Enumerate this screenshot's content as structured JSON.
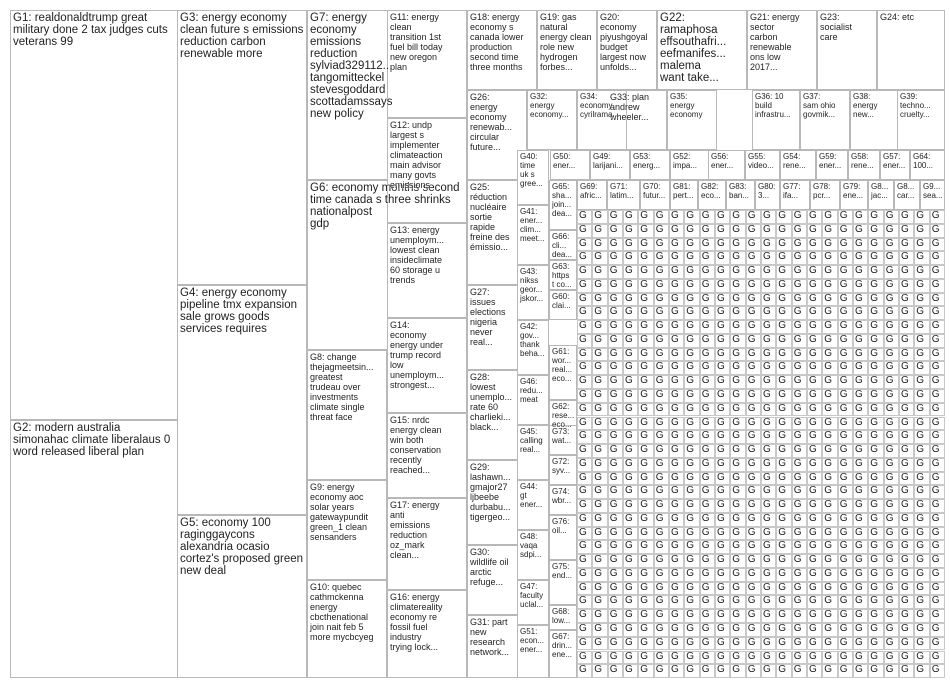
{
  "groups": [
    {
      "id": "G1",
      "text": "G1: realdonaldtrump great\nmilitary done 2 tax judges cuts\nveterans 99",
      "color": "#1a2a6c"
    },
    {
      "id": "G2",
      "text": "G2: modern australia\nsimonahac climate liberalaus 0\nword released liberal plan",
      "color": "#1f6fb5"
    },
    {
      "id": "G3",
      "text": "G3: energy economy\nclean future s emissions\nreduction carbon\nrenewable more",
      "color": "#2e7d32"
    },
    {
      "id": "G4",
      "text": "G4: energy economy\npipeline tmx expansion\nsale grows goods\nservices requires",
      "color": "#2fa84f"
    },
    {
      "id": "G5",
      "text": "G5: economy 100\nraginggaycons\nalexandria ocasio\ncortez's proposed green\nnew deal",
      "color": "#b71c1c"
    },
    {
      "id": "G6",
      "text": "G6: economy months second\ntime canada s three shrinks\nnationalpost\ngdp",
      "color": "#e08a1e"
    },
    {
      "id": "G7",
      "text": "G7: energy\neconomy\nemissions\nreduction\nsylviad329112...\ntangomitteckel\nstevesgoddard\nscottadamssays\nnew policy",
      "color": "#7b5ea7"
    },
    {
      "id": "G8",
      "text": "G8: change\nthejagmeetsin...\ngreatest\ntrudeau over\ninvestments\nclimate single\nthreat face",
      "color": "#8d6e63"
    },
    {
      "id": "G9",
      "text": "G9: energy\neconomy aoc\nsolar years\ngatewaypundit\ngreen_1 clean\nsensanders",
      "color": "#5c6bc0"
    },
    {
      "id": "G10",
      "text": "G10: quebec\ncathmckenna\nenergy\ncbcthenational\njoin nait feb 5\nmore mycbcyeg",
      "color": "#607d8b"
    },
    {
      "id": "G11",
      "text": "G11: energy\nclean\ntransition 1st\nfuel bill today\nnew oregon\nplan",
      "color": "#455a64"
    },
    {
      "id": "G12",
      "text": "G12: undp\nlargest s\nimplementer\nclimateaction\nmain advisor\nmany govts\nemissions",
      "color": "#6d4c41"
    },
    {
      "id": "G13",
      "text": "G13: energy\nunemploym...\nlowest clean\ninsideclimate\n60 storage u\ntrends",
      "color": "#00897b"
    },
    {
      "id": "G14",
      "text": "G14:\neconomy\nenergy under\ntrump record\nlow\nunemploym...\nstrongest...",
      "color": "#c2185b"
    },
    {
      "id": "G15",
      "text": "G15: nrdc\nenergy clean\nwin both\nconservation\nrecently\nreached...",
      "color": "#558b2f"
    },
    {
      "id": "G16",
      "text": "G16: energy\nclimatereality\neconomy re\nfossil fuel\nindustry\ntrying lock...",
      "color": "#00838f"
    },
    {
      "id": "G17",
      "text": "G17: energy\nanti\nemissions\nreduction\noz_mark\nclean...",
      "color": "#ad1457"
    },
    {
      "id": "G18",
      "text": "G18: energy\neconomy s\ncanada lower\nproduction\nsecond time\nthree months",
      "color": "#6a1b9a"
    },
    {
      "id": "G19",
      "text": "G19: gas\nnatural\nenergy clean\nrole new\nhydrogen\nforbes...",
      "color": "#7cb342"
    },
    {
      "id": "G20",
      "text": "G20:\neconomy\npiyushgoyal\nbudget\nlargest now\nunfolds...",
      "color": "#f9a825"
    },
    {
      "id": "G21",
      "text": "G21: energy\nsector\ncarbon\nrenewable\nons low\n2017...",
      "color": "#e64a19"
    },
    {
      "id": "G22",
      "text": "G22:\nramaphosa\neffsouthafri...\neefmanifes...\nmalema\nwant take...",
      "color": "#5d4037"
    },
    {
      "id": "G23",
      "text": "G23:\nsocialist\ncare",
      "color": "#8e24aa"
    },
    {
      "id": "G24",
      "text": "G24: etc",
      "color": "#26a69a"
    },
    {
      "id": "G25",
      "text": "G25:\nréduction\nnucléaire\nsortie\nrapide\nfreine des\némissio...",
      "color": "#3949ab"
    },
    {
      "id": "G26",
      "text": "G26:\nenergy\neconomy\nrenewab...\ncircular\nfuture...",
      "color": "#0277bd"
    },
    {
      "id": "G27",
      "text": "G27:\nissues\nelections\nnigeria\nnever\nreal...",
      "color": "#43a047"
    },
    {
      "id": "G28",
      "text": "G28:\nlowest\nunemplo...\nrate 60\ncharlieki...\nblack...",
      "color": "#c62828"
    },
    {
      "id": "G29",
      "text": "G29:\nlashawn...\ngmajor27\nljbeebe\ndurbabu...\ntigergeo...",
      "color": "#6d4c41"
    },
    {
      "id": "G30",
      "text": "G30:\nwildlife oil\narctic\nrefuge...",
      "color": "#2e7d32"
    },
    {
      "id": "G31",
      "text": "G31: part\nnew\nresearch\nnetwork...",
      "color": "#546e7a"
    },
    {
      "id": "G32",
      "text": "G32:\nenergy\neconomy...",
      "color": "#1565c0"
    },
    {
      "id": "G33",
      "text": "G33: plan\nandrew\nwheeler...",
      "color": "#8d6e63"
    },
    {
      "id": "G34",
      "text": "G34:\neconomy\ncyrilrama...",
      "color": "#4e342e"
    },
    {
      "id": "G35",
      "text": "G35:\nenergy\neconomy",
      "color": "#00695c"
    },
    {
      "id": "G36",
      "text": "G36: 10\nbuild\ninfrastru...",
      "color": "#283593"
    },
    {
      "id": "G37",
      "text": "G37:\nsam ohio\ngovmik...",
      "color": "#6a1b9a"
    },
    {
      "id": "G38",
      "text": "G38:\nenergy\nnew...",
      "color": "#0097a7"
    },
    {
      "id": "G39",
      "text": "G39:\ntechno...\ncruelty...",
      "color": "#ef6c00"
    },
    {
      "id": "G40",
      "text": "G40:\ntime\nuk s\ngree...",
      "color": "#558b2f"
    },
    {
      "id": "G41",
      "text": "G41:\nener...\nclim...\nmeet...",
      "color": "#1e88e5"
    },
    {
      "id": "G42",
      "text": "G42:\ngov...\nthank\nbeha...",
      "color": "#8e24aa"
    },
    {
      "id": "G43",
      "text": "G43:\nnikss\ngeor...\njskor...",
      "color": "#e53935"
    },
    {
      "id": "G44",
      "text": "G44:\ngt\nener...",
      "color": "#00838f"
    },
    {
      "id": "G45",
      "text": "G45:\ncalling\nreal...",
      "color": "#7cb342"
    },
    {
      "id": "G46",
      "text": "G46:\nredu...\nmeat",
      "color": "#f4511e"
    },
    {
      "id": "G47",
      "text": "G47:\nfaculty\nuclal...",
      "color": "#5e35b1"
    },
    {
      "id": "G48",
      "text": "G48:\nvaqa\nsdpi...",
      "color": "#3949ab"
    },
    {
      "id": "G49",
      "text": "G49:\nlarijani...",
      "color": "#6d4c41"
    },
    {
      "id": "G50",
      "text": "G50:\nener...",
      "color": "#0288d1"
    },
    {
      "id": "G51",
      "text": "G51:\necon...\nener...",
      "color": "#43a047"
    },
    {
      "id": "G52",
      "text": "G52:\nimpa...",
      "color": "#c0ca33"
    },
    {
      "id": "G53",
      "text": "G53:\nenerg...",
      "color": "#e91e63"
    },
    {
      "id": "G54",
      "text": "G54:\nrene...",
      "color": "#009688"
    },
    {
      "id": "G55",
      "text": "G55:\nvideo...",
      "color": "#3f51b5"
    },
    {
      "id": "G56",
      "text": "G56:\nener...",
      "color": "#ff7043"
    },
    {
      "id": "G57",
      "text": "G57:\nener...",
      "color": "#8bc34a"
    },
    {
      "id": "G58",
      "text": "G58:\nrene...",
      "color": "#795548"
    },
    {
      "id": "G59",
      "text": "G59:\nener...",
      "color": "#9c27b0"
    },
    {
      "id": "G60",
      "text": "G60:\nclai...",
      "color": "#00acc1"
    },
    {
      "id": "G61",
      "text": "G61:\nwor...\nreal...\neco...",
      "color": "#fb8c00"
    },
    {
      "id": "G62",
      "text": "G62:\nrese...\neco...",
      "color": "#5c6bc0"
    },
    {
      "id": "G63",
      "text": "G63:\nhttps\nt co...",
      "color": "#26a69a"
    },
    {
      "id": "G64",
      "text": "G64:\n100...",
      "color": "#ab47bc"
    },
    {
      "id": "G65",
      "text": "G65:\nsha...\njoin...\ndea...",
      "color": "#8d6e63"
    },
    {
      "id": "G66",
      "text": "G66:\ncli...\ndea...",
      "color": "#1976d2"
    },
    {
      "id": "G67",
      "text": "G67:\ndrin...\nene...",
      "color": "#d81b60"
    },
    {
      "id": "G68",
      "text": "G68:\nlow...",
      "color": "#689f38"
    },
    {
      "id": "G69",
      "text": "G69:\nafric...",
      "color": "#ff8f00"
    },
    {
      "id": "G70",
      "text": "G70:\nfutur...",
      "color": "#0097a7"
    },
    {
      "id": "G71",
      "text": "G71:\nlatim...",
      "color": "#7b1fa2"
    },
    {
      "id": "G72",
      "text": "G72:\nsyv...",
      "color": "#c62828"
    },
    {
      "id": "G73",
      "text": "G73:\nwat...",
      "color": "#2e7d32"
    },
    {
      "id": "G74",
      "text": "G74:\nwbr...",
      "color": "#1565c0"
    },
    {
      "id": "G75",
      "text": "G75:\nend...",
      "color": "#6d4c41"
    },
    {
      "id": "G76",
      "text": "G76:\noil...",
      "color": "#455a64"
    },
    {
      "id": "G77",
      "text": "G77:\nifa...",
      "color": "#e64a19"
    },
    {
      "id": "G78",
      "text": "G78:\npcr...",
      "color": "#00897b"
    },
    {
      "id": "G79",
      "text": "G79:\nene...",
      "color": "#5e35b1"
    },
    {
      "id": "G80",
      "text": "G80:\n3...",
      "color": "#f9a825"
    },
    {
      "id": "G81",
      "text": "G81:\npert...",
      "color": "#43a047"
    },
    {
      "id": "G82",
      "text": "G82:\neco...",
      "color": "#1e88e5"
    },
    {
      "id": "G83",
      "text": "G83:\nban...",
      "color": "#8e24aa"
    },
    {
      "id": "G84",
      "text": "G8...\njac...",
      "color": "#e53935"
    },
    {
      "id": "G85",
      "text": "G8...\ncar...",
      "color": "#00838f"
    },
    {
      "id": "G86",
      "text": "G9...\nsea...",
      "color": "#7cb342"
    }
  ],
  "small_cells": [
    "G...",
    "G...",
    "G...",
    "G..."
  ],
  "g_glyph": "G"
}
